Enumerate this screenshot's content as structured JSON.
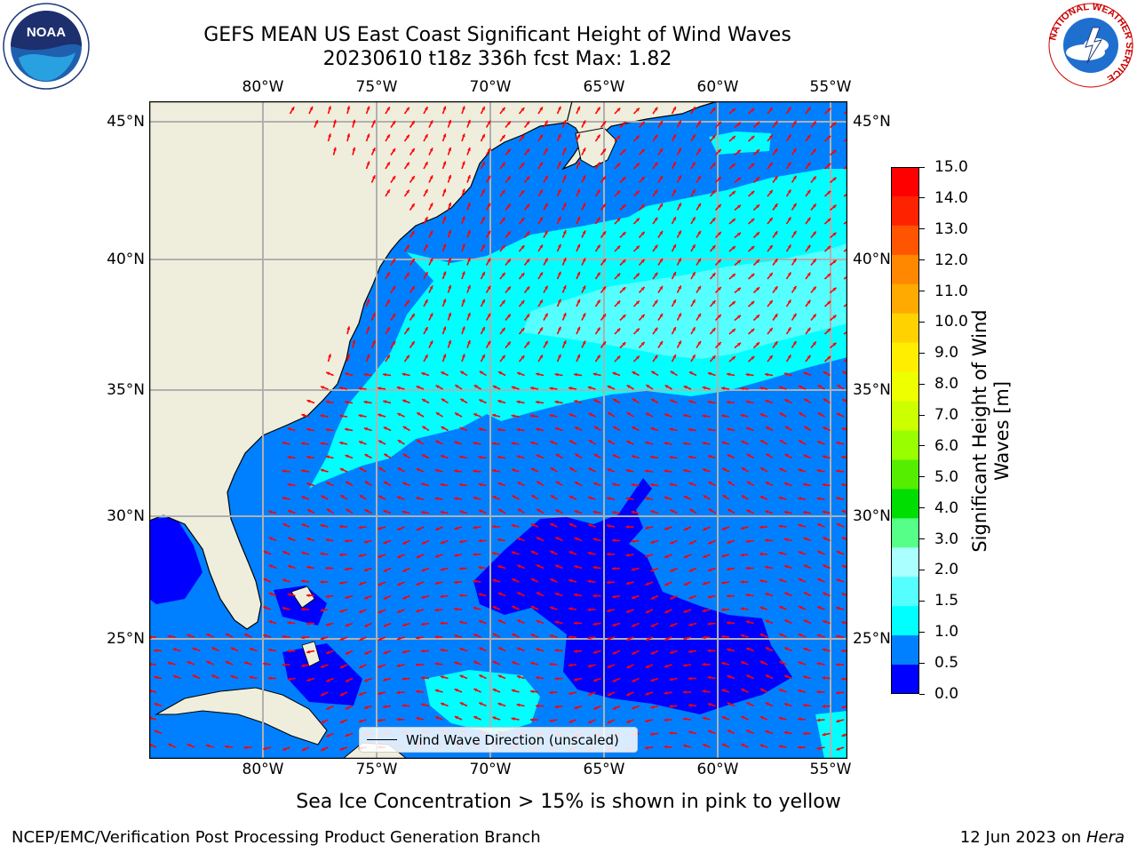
{
  "title_line1": "GEFS MEAN US East Coast Significant Height of Wind Waves",
  "title_line2": "20230610 t18z 336h fcst   Max: 1.82",
  "logos": {
    "left": "NOAA",
    "right_ring": "NATIONAL WEATHER SERVICE"
  },
  "lon_ticks": [
    "80°W",
    "75°W",
    "70°W",
    "65°W",
    "60°W",
    "55°W"
  ],
  "lat_ticks": [
    "45°N",
    "40°N",
    "35°N",
    "30°N",
    "25°N"
  ],
  "legend_label": "Wind Wave Direction (unscaled)",
  "colorbar": {
    "label_line1": "Significant Height of Wind",
    "label_line2": "Waves [m]",
    "ticks": [
      "15.0",
      "14.0",
      "13.0",
      "12.0",
      "11.0",
      "10.0",
      "9.0",
      "8.0",
      "7.0",
      "6.0",
      "5.0",
      "4.0",
      "3.0",
      "2.0",
      "1.5",
      "1.0",
      "0.5",
      "0.0"
    ],
    "colors": [
      "#ff0000",
      "#ff2200",
      "#ff5500",
      "#ff8800",
      "#ffaa00",
      "#ffd200",
      "#ffee00",
      "#eeff00",
      "#ccff00",
      "#99ff00",
      "#55ee00",
      "#00dd00",
      "#55ff88",
      "#aaffff",
      "#55ffff",
      "#00ffff",
      "#0080ff",
      "#0000ff"
    ]
  },
  "caption": "Sea Ice Concentration > 15% is shown in pink to yellow",
  "footer_left": "NCEP/EMC/Verification Post Processing Product Generation Branch",
  "footer_right_date": "12 Jun 2023 on",
  "footer_right_host": "Hera",
  "colors": {
    "land": "#efeedd",
    "wave_low": "#0000ff",
    "wave_mid": "#0080ff",
    "wave_high": "#00ffff",
    "arrow": "#ff0000",
    "grid": "#b0b0b0"
  }
}
